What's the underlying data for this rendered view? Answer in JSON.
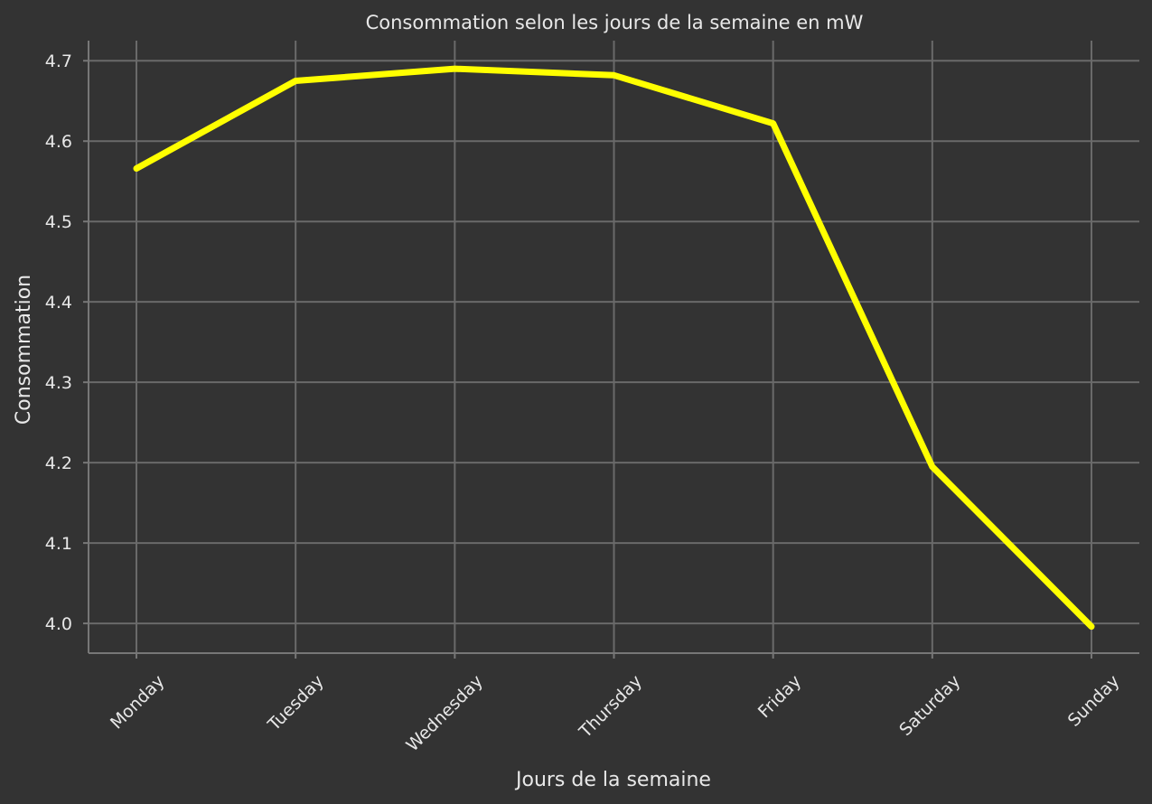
{
  "chart_data": {
    "type": "line",
    "title": "Consommation selon les jours de la semaine en mW",
    "xlabel": "Jours de la semaine",
    "ylabel": "Consommation",
    "categories": [
      "Monday",
      "Tuesday",
      "Wednesday",
      "Thursday",
      "Friday",
      "Saturday",
      "Sunday"
    ],
    "series": [
      {
        "values": [
          4.566,
          4.675,
          4.69,
          4.682,
          4.622,
          4.195,
          3.996
        ],
        "color": "#ffff00"
      }
    ],
    "ylim": [
      3.963,
      4.725
    ],
    "yticks": [
      "4.0",
      "4.1",
      "4.2",
      "4.3",
      "4.4",
      "4.5",
      "4.6",
      "4.7"
    ],
    "grid": true,
    "legend": "none"
  }
}
